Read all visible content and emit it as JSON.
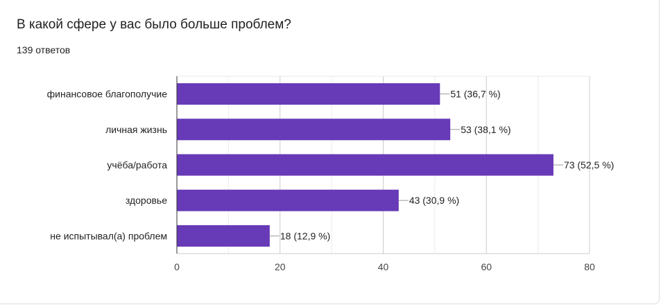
{
  "question": {
    "title": "В какой сфере у вас было больше проблем?",
    "response_count": "139 ответов"
  },
  "colors": {
    "bar": "#673ab7",
    "axis": "#333333",
    "grid": "#e6e6e6",
    "text": "#222222"
  },
  "chart_data": {
    "type": "bar",
    "orientation": "horizontal",
    "categories": [
      "финансовое благополучие",
      "личная жизнь",
      "учёба/работа",
      "здоровье",
      "не испытывал(а) проблем"
    ],
    "values": [
      51,
      53,
      73,
      43,
      18
    ],
    "data_labels": [
      "51 (36,7 %)",
      "53 (38,1 %)",
      "73 (52,5 %)",
      "43 (30,9 %)",
      "18 (12,9 %)"
    ],
    "xlim": [
      0,
      80
    ],
    "xticks": [
      0,
      20,
      40,
      60,
      80
    ],
    "grid": true,
    "legend": "none"
  }
}
